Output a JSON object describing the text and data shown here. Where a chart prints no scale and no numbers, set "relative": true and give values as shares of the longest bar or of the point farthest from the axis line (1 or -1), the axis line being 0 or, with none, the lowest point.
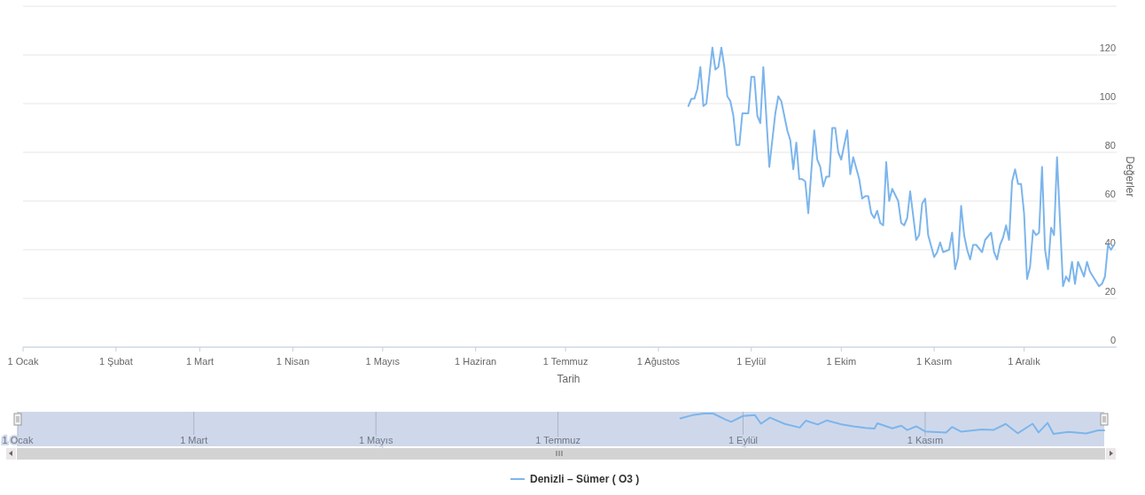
{
  "chart_data": [
    {
      "type": "line",
      "xlabel": "Tarih",
      "ylabel": "Değerler",
      "grid": "y",
      "legend": "bottom",
      "xlim": [
        "--01-01",
        "--12-31"
      ],
      "xticks": [
        {
          "value": "--01-01",
          "label": "1 Ocak"
        },
        {
          "value": "--02-01",
          "label": "1 Şubat"
        },
        {
          "value": "--03-01",
          "label": "1 Mart"
        },
        {
          "value": "--04-01",
          "label": "1 Nisan"
        },
        {
          "value": "--05-01",
          "label": "1 Mayıs"
        },
        {
          "value": "--06-01",
          "label": "1 Haziran"
        },
        {
          "value": "--07-01",
          "label": "1 Temmuz"
        },
        {
          "value": "--08-01",
          "label": "1 Ağustos"
        },
        {
          "value": "--09-01",
          "label": "1 Eylül"
        },
        {
          "value": "--10-01",
          "label": "1 Ekim"
        },
        {
          "value": "--11-01",
          "label": "1 Kasım"
        },
        {
          "value": "--12-01",
          "label": "1 Aralık"
        }
      ],
      "ylim": [
        0,
        140
      ],
      "yticks": [
        0,
        20,
        40,
        60,
        80,
        100,
        120,
        {
          "value": 140,
          "label": null
        }
      ],
      "x": [
        "--08-11",
        "--08-12",
        "--08-13",
        "--08-14",
        "--08-15",
        "--08-16",
        "--08-17",
        "--08-19",
        "--08-20",
        "--08-21",
        "--08-22",
        "--08-23",
        "--08-24",
        "--08-25",
        "--08-26",
        "--08-27",
        "--08-28",
        "--08-29",
        "--08-30",
        "--08-31",
        "--09-01",
        "--09-02",
        "--09-03",
        "--09-04",
        "--09-05",
        "--09-07",
        "--09-09",
        "--09-10",
        "--09-11",
        "--09-13",
        "--09-14",
        "--09-15",
        "--09-16",
        "--09-17",
        "--09-18",
        "--09-19",
        "--09-20",
        "--09-22",
        "--09-23",
        "--09-24",
        "--09-25",
        "--09-26",
        "--09-27",
        "--09-28",
        "--09-29",
        "--09-30",
        "--10-01",
        "--10-03",
        "--10-04",
        "--10-05",
        "--10-07",
        "--10-08",
        "--10-09",
        "--10-10",
        "--10-11",
        "--10-12",
        "--10-13",
        "--10-14",
        "--10-15",
        "--10-16",
        "--10-17",
        "--10-18",
        "--10-20",
        "--10-21",
        "--10-22",
        "--10-23",
        "--10-24",
        "--10-26",
        "--10-27",
        "--10-28",
        "--10-29",
        "--10-30",
        "--11-01",
        "--11-02",
        "--11-03",
        "--11-04",
        "--11-06",
        "--11-07",
        "--11-08",
        "--11-09",
        "--11-10",
        "--11-11",
        "--11-12",
        "--11-13",
        "--11-14",
        "--11-15",
        "--11-17",
        "--11-18",
        "--11-20",
        "--11-21",
        "--11-22",
        "--11-23",
        "--11-24",
        "--11-25",
        "--11-26",
        "--11-27",
        "--11-28",
        "--11-29",
        "--11-30",
        "--12-01",
        "--12-02",
        "--12-03",
        "--12-04",
        "--12-05",
        "--12-06",
        "--12-07",
        "--12-08",
        "--12-09",
        "--12-10",
        "--12-11",
        "--12-12",
        "--12-14",
        "--12-15",
        "--12-16",
        "--12-17",
        "--12-18",
        "--12-19",
        "--12-20",
        "--12-21",
        "--12-22",
        "--12-23",
        "--12-24",
        "--12-25",
        "--12-26",
        "--12-27",
        "--12-28",
        "--12-29",
        "--12-30",
        "--12-31"
      ],
      "series": [
        {
          "name": "Denizli – Sümer ( O3 )",
          "color": "#7cb5ec",
          "values": [
            99,
            102,
            102,
            106,
            115,
            99,
            100,
            123,
            114,
            115,
            123,
            115,
            103,
            101,
            95,
            83,
            83,
            96,
            96,
            96,
            111,
            111,
            95,
            92,
            115,
            74,
            96,
            103,
            101,
            89,
            85,
            73,
            84,
            69,
            69,
            68,
            55,
            89,
            77,
            74,
            66,
            70,
            70,
            90,
            90,
            80,
            77,
            89,
            71,
            78,
            69,
            61,
            62,
            62,
            55,
            53,
            56,
            51,
            50,
            76,
            60,
            65,
            60,
            51,
            50,
            53,
            64,
            44,
            46,
            59,
            61,
            46,
            37,
            39,
            43,
            39,
            40,
            47,
            32,
            37,
            58,
            46,
            40,
            36,
            42,
            42,
            39,
            44,
            47,
            39,
            36,
            42,
            45,
            50,
            44,
            68,
            73,
            67,
            67,
            55,
            28,
            33,
            48,
            46,
            47,
            74,
            40,
            32,
            49,
            46,
            78,
            25,
            29,
            27,
            35,
            26,
            35,
            32,
            29,
            35,
            31,
            29,
            27,
            25,
            26,
            29,
            42,
            40,
            42
          ]
        }
      ]
    },
    {
      "type": "line",
      "relative": true,
      "grid": "x",
      "tick_labels": "x",
      "xlim": [
        "--01-01",
        "--12-31"
      ],
      "xticks": [
        {
          "value": "--01-01",
          "label": "1 Ocak"
        },
        {
          "value": "--03-01",
          "label": "1 Mart"
        },
        {
          "value": "--05-01",
          "label": "1 Mayıs"
        },
        {
          "value": "--07-01",
          "label": "1 Temmuz"
        },
        {
          "value": "--09-01",
          "label": "1 Eylül"
        },
        {
          "value": "--11-01",
          "label": "1 Kasım"
        }
      ],
      "x": [
        "--08-11",
        "--08-15",
        "--08-19",
        "--08-22",
        "--08-26",
        "--08-28",
        "--09-01",
        "--09-05",
        "--09-07",
        "--09-10",
        "--09-15",
        "--09-20",
        "--09-22",
        "--09-26",
        "--09-29",
        "--10-04",
        "--10-08",
        "--10-12",
        "--10-15",
        "--10-16",
        "--10-21",
        "--10-24",
        "--10-26",
        "--10-29",
        "--11-01",
        "--11-08",
        "--11-10",
        "--11-13",
        "--11-20",
        "--11-24",
        "--11-28",
        "--12-02",
        "--12-07",
        "--12-09",
        "--12-12",
        "--12-14",
        "--12-19",
        "--12-25",
        "--12-29",
        "--12-31"
      ],
      "series": [
        {
          "color": "#7cb5ec",
          "values": [
            0.76,
            0.92,
            1,
            1,
            0.71,
            0.59,
            0.88,
            0.92,
            0.5,
            0.8,
            0.49,
            0.31,
            0.65,
            0.46,
            0.66,
            0.47,
            0.37,
            0.29,
            0.26,
            0.52,
            0.27,
            0.4,
            0.19,
            0.37,
            0.12,
            0.07,
            0.34,
            0.11,
            0.22,
            0.2,
            0.49,
            0.03,
            0.5,
            0.07,
            0.54,
            0,
            0.1,
            0.02,
            0.17,
            0.17
          ]
        }
      ]
    }
  ]
}
